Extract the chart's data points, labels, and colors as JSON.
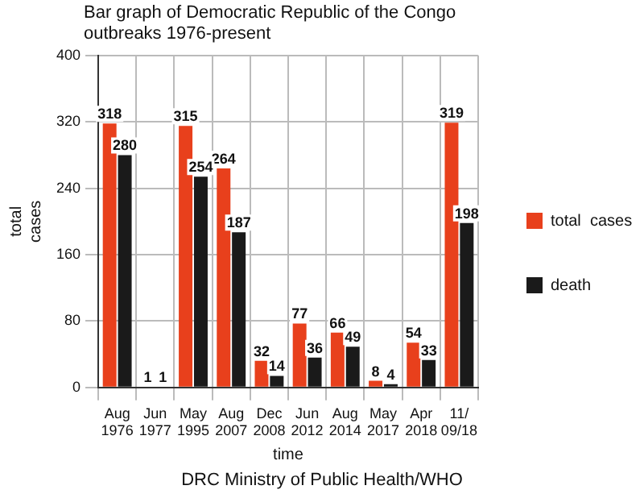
{
  "chart_data": {
    "type": "bar",
    "title": "Bar graph of Democratic Republic of the Congo outbreaks 1976-present",
    "xlabel": "time",
    "ylabel": "total cases",
    "categories": [
      "Aug 1976",
      "Jun 1977",
      "May 1995",
      "Aug 2007",
      "Dec 2008",
      "Jun 2012",
      "Aug 2014",
      "May 2017",
      "Apr 2018",
      "11/ 09/18"
    ],
    "series": [
      {
        "name": "total  cases",
        "color": "#e8401c",
        "values": [
          318,
          1,
          315,
          264,
          32,
          77,
          66,
          8,
          54,
          319
        ]
      },
      {
        "name": "death",
        "color": "#1a1a1a",
        "values": [
          280,
          1,
          254,
          187,
          14,
          36,
          49,
          4,
          33,
          198
        ]
      }
    ],
    "ylim": [
      0,
      400
    ],
    "yticks": [
      0,
      80,
      160,
      240,
      320,
      400
    ],
    "grid": true,
    "legend": "right",
    "data_labels": true,
    "annotations": [
      "DRC Ministry of Public Health/WHO"
    ]
  }
}
